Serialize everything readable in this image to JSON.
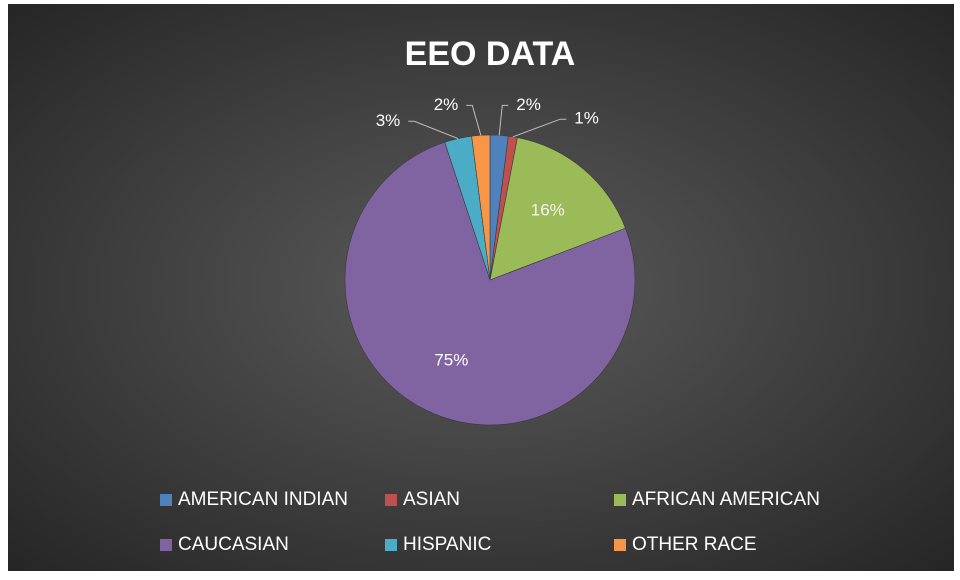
{
  "chart_data": {
    "type": "pie",
    "title": "EEO DATA",
    "categories": [
      "AMERICAN INDIAN",
      "ASIAN",
      "AFRICAN AMERICAN",
      "CAUCASIAN",
      "HISPANIC",
      "OTHER RACE"
    ],
    "values": [
      2,
      1,
      16,
      75,
      3,
      2
    ],
    "value_labels": [
      "2%",
      "1%",
      "16%",
      "75%",
      "3%",
      "2%"
    ],
    "colors": [
      "#4f81bd",
      "#c0504d",
      "#9bbb59",
      "#8064a2",
      "#4bacc6",
      "#f79646"
    ],
    "legend": "bottom"
  }
}
